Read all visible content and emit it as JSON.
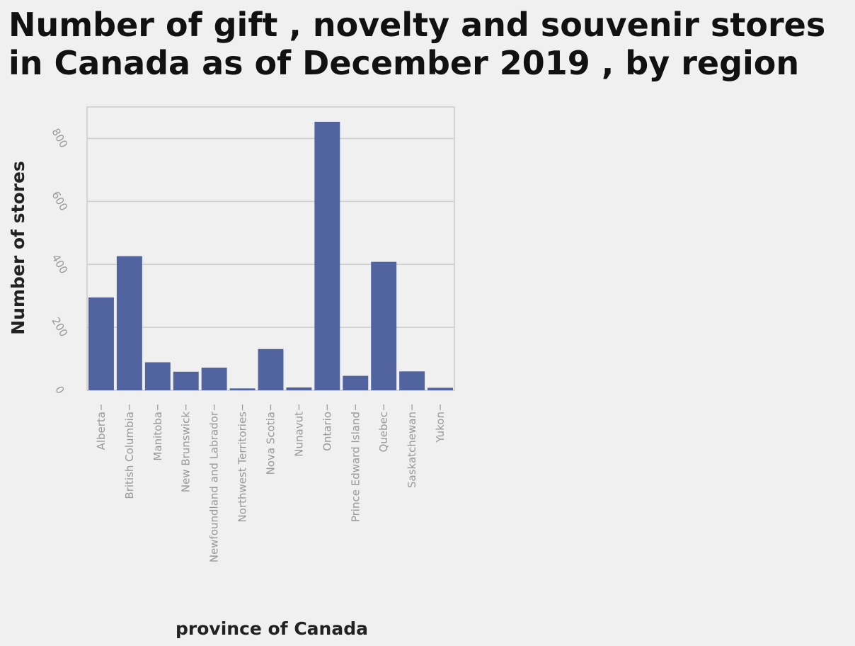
{
  "chart_data": {
    "type": "bar",
    "title": "Number of gift , novelty and souvenir stores in Canada as of December 2019 , by region",
    "xlabel": "province of Canada",
    "ylabel": "Number of stores",
    "categories": [
      "Alberta",
      "British Columbia",
      "Manitoba",
      "New Brunswick",
      "Newfoundland and Labrador",
      "Northwest Territories",
      "Nova Scotia",
      "Nunavut",
      "Ontario",
      "Prince Edward Island",
      "Quebec",
      "Saskatchewan",
      "Yukon"
    ],
    "values": [
      295,
      426,
      89,
      59,
      72,
      6,
      131,
      9,
      853,
      46,
      408,
      60,
      8
    ],
    "ylim": [
      0,
      900
    ],
    "yticks": [
      0,
      200,
      400,
      600,
      800
    ],
    "grid": true,
    "bar_color": "#5264a0",
    "legend": "none"
  }
}
